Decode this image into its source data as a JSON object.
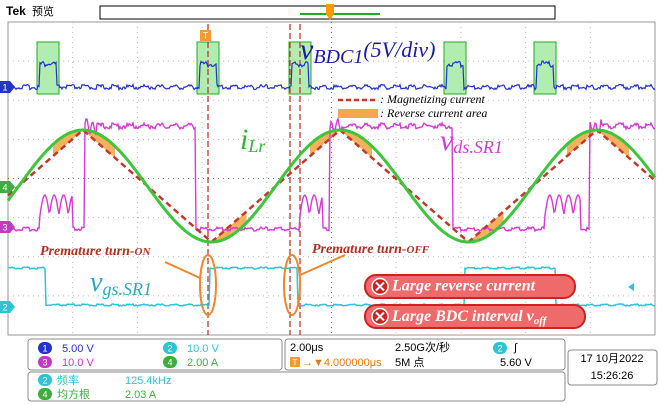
{
  "header": {
    "brand": "Tek",
    "mode": "预览"
  },
  "channel_markers": [
    "1",
    "4",
    "3",
    "2"
  ],
  "trigger_marker": "T",
  "annotations": {
    "v_bdc1": {
      "symbol": "v",
      "subscript": "BDC1",
      "suffix": "(5V/div)"
    },
    "legend": [
      ": Magnetizing current",
      ": Reverse current area"
    ],
    "i_lr": {
      "symbol": "i",
      "subscript": "Lr"
    },
    "v_ds": {
      "symbol": "v",
      "subscript": "ds.SR1"
    },
    "v_gs": {
      "symbol": "v",
      "subscript": "gs.SR1"
    },
    "turn_on": {
      "text": "Premature turn-",
      "suffix": "ON"
    },
    "turn_off": {
      "text": "Premature turn-",
      "suffix": "OFF"
    },
    "callouts": [
      {
        "text": "Large reverse current"
      },
      {
        "text": "Large BDC interval ",
        "symbol": "v",
        "subscript": "off"
      }
    ]
  },
  "status": {
    "channels": [
      {
        "id": "1",
        "scale": "5.00 V"
      },
      {
        "id": "2",
        "scale": "10.0 V"
      },
      {
        "id": "3",
        "scale": "10.0 V"
      },
      {
        "id": "4",
        "scale": "2.00 A"
      }
    ],
    "horizontal": {
      "scale": "2.00μs",
      "rate": "2.50G次/秒",
      "trigger_icon": "T",
      "position": "→▼4.000000μs",
      "record": "5M 点"
    },
    "trigger": {
      "source": "2",
      "slope": "∫",
      "level": "5.60 V"
    },
    "date": "17 10月2022",
    "time": "15:26:26",
    "measurements": [
      {
        "channel": "2",
        "name": "频率",
        "value": "125.4kHz"
      },
      {
        "channel": "4",
        "name": "均方根",
        "value": "2.03 A"
      }
    ]
  }
}
